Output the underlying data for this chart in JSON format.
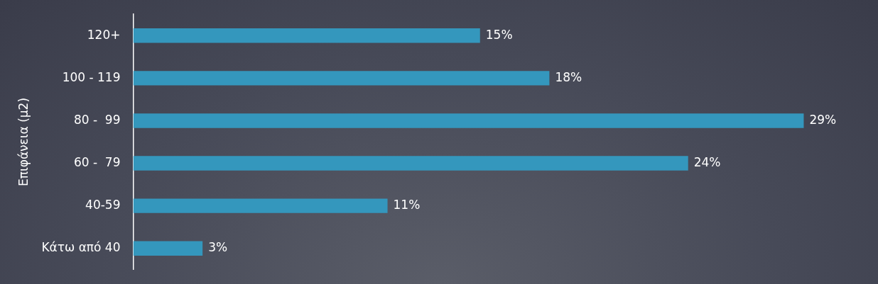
{
  "chart_data": {
    "type": "bar",
    "orientation": "horizontal",
    "ylabel": "Επιφάνεια (μ2)",
    "categories": [
      "120+",
      "100 - 119",
      "80 -  99",
      "60 -  79",
      "40-59",
      "Κάτω από 40"
    ],
    "values": [
      15,
      18,
      29,
      24,
      11,
      3
    ],
    "value_labels": [
      "15%",
      "18%",
      "29%",
      "24%",
      "11%",
      "3%"
    ],
    "color": "#3497bd",
    "legend": false
  }
}
